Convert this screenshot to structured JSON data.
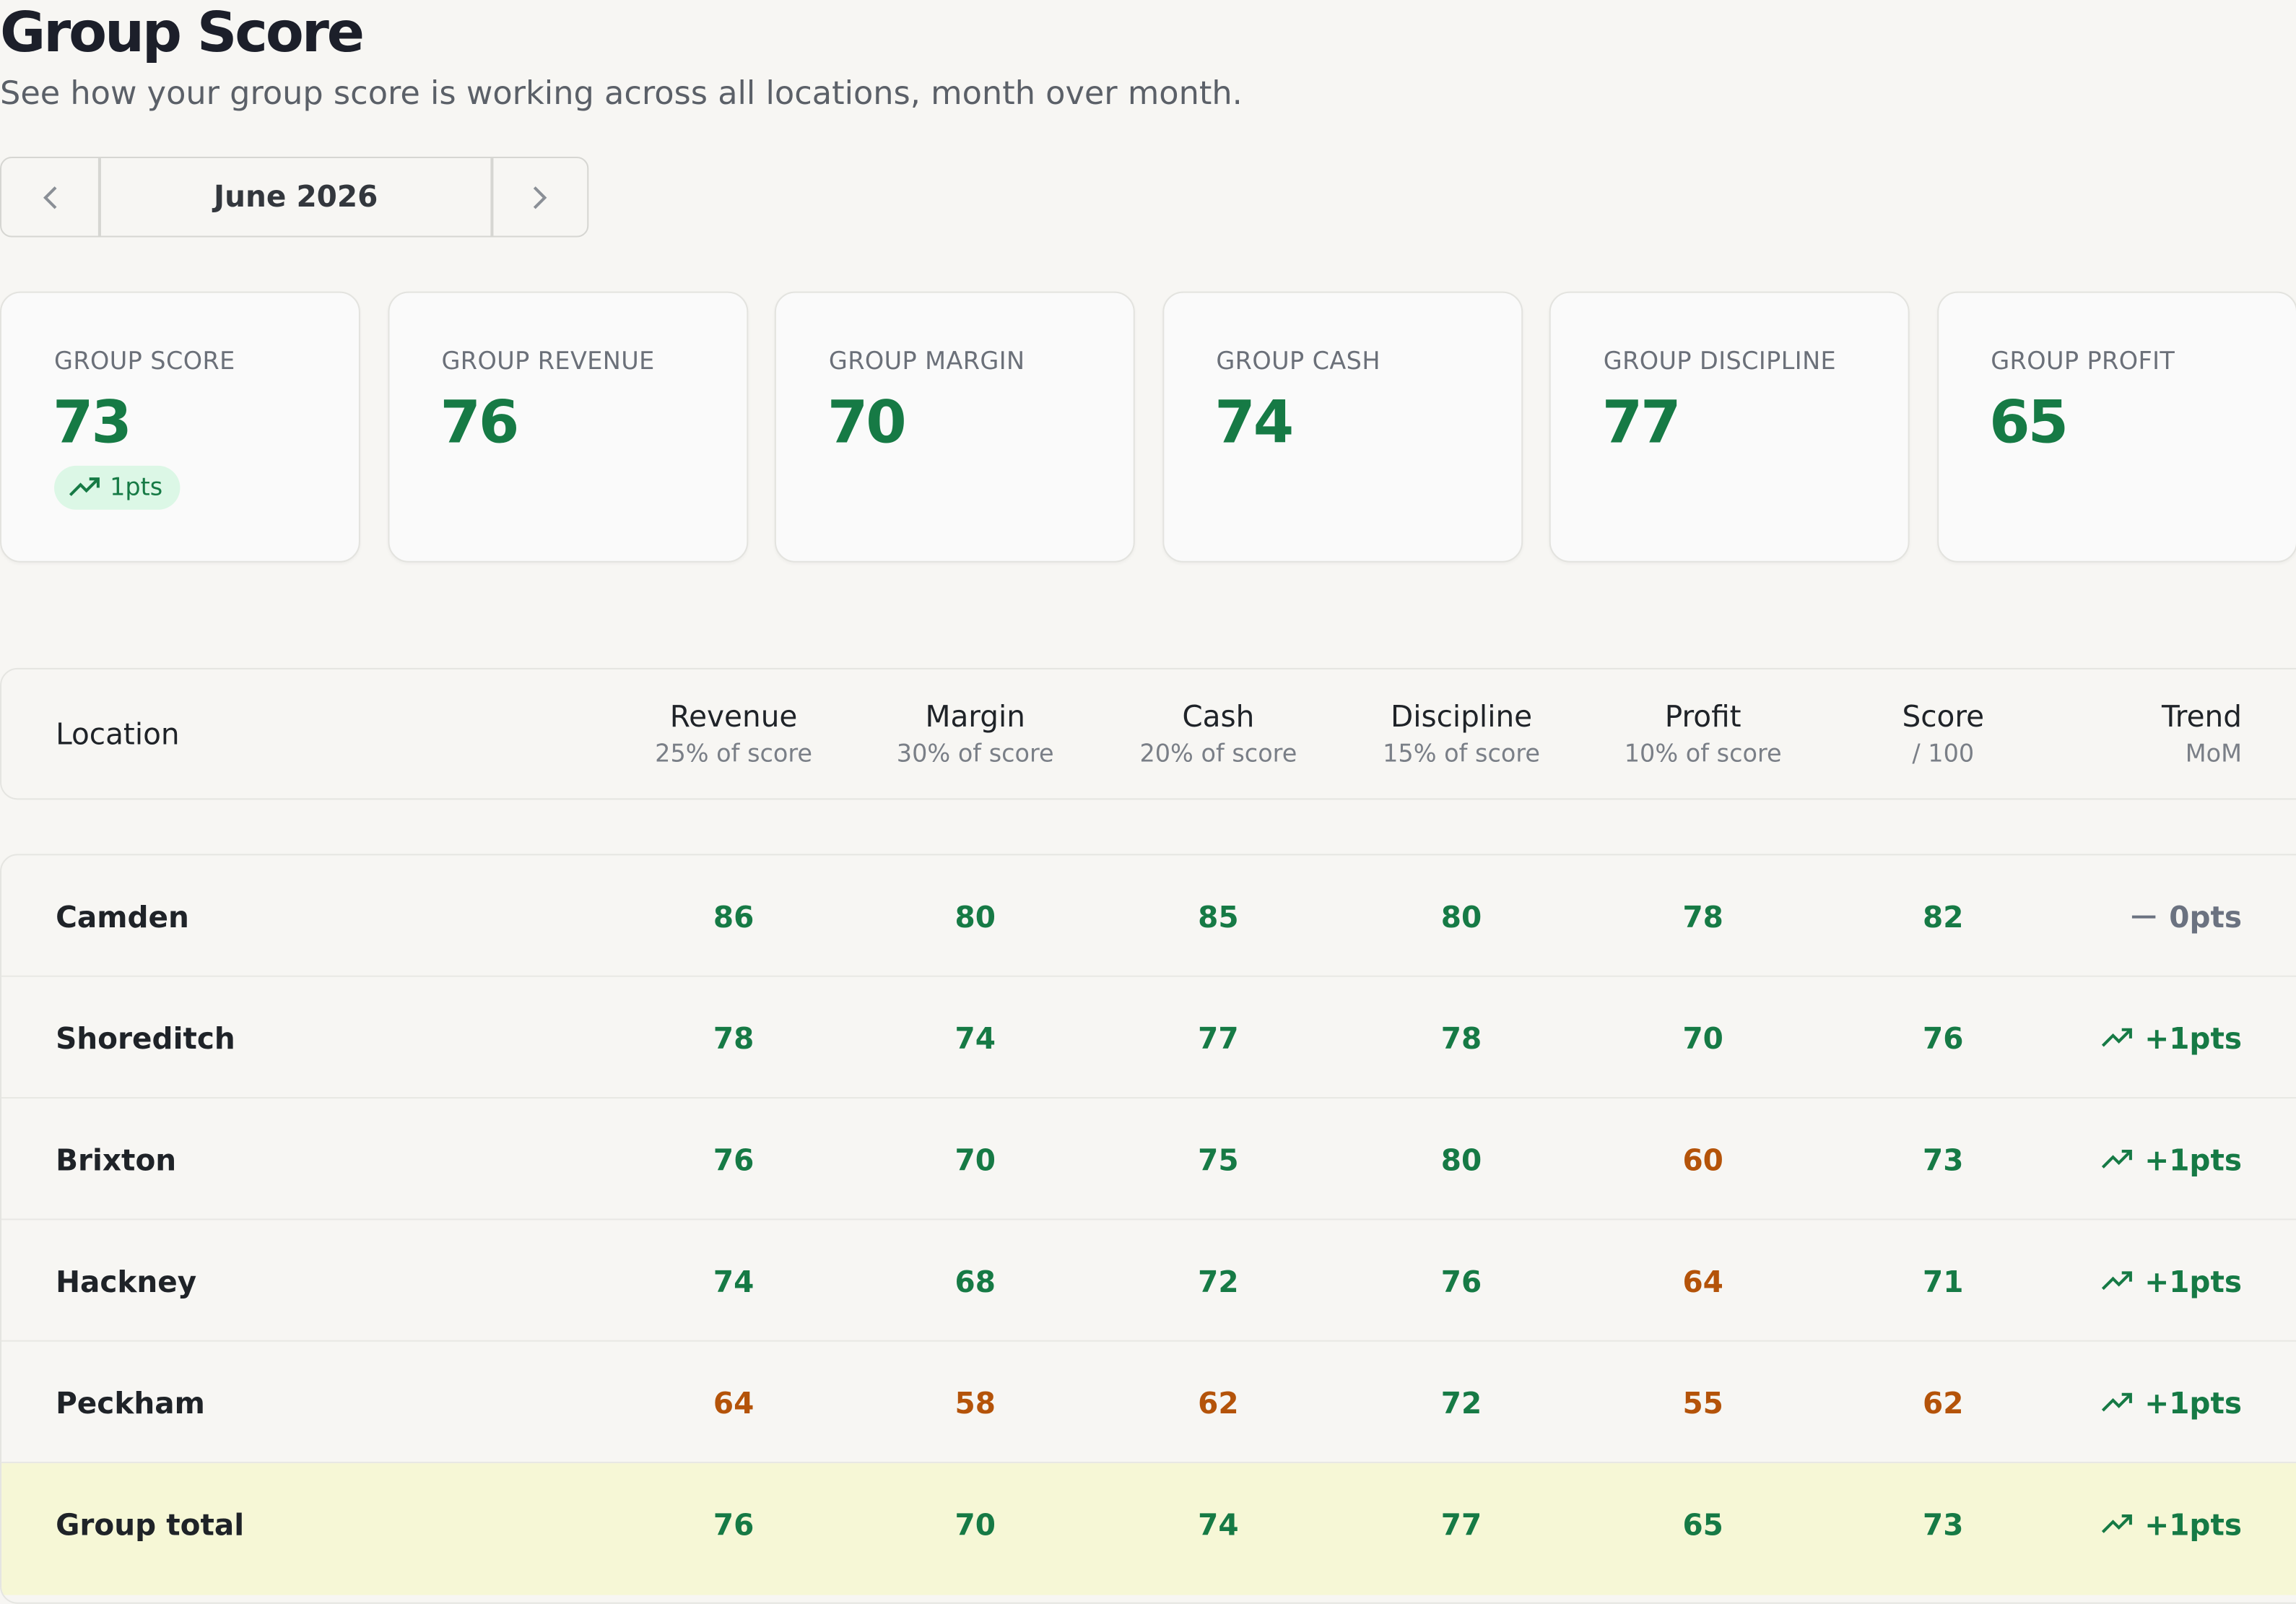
{
  "header": {
    "title": "Group Score",
    "subtitle": "See how your group score is working across all locations, month over month."
  },
  "month_picker": {
    "label": "June 2026"
  },
  "cards": [
    {
      "label": "GROUP SCORE",
      "value": 73,
      "delta": "1pts"
    },
    {
      "label": "GROUP REVENUE",
      "value": 76
    },
    {
      "label": "GROUP MARGIN",
      "value": 70
    },
    {
      "label": "GROUP CASH",
      "value": 74
    },
    {
      "label": "GROUP DISCIPLINE",
      "value": 77
    },
    {
      "label": "GROUP PROFIT",
      "value": 65
    }
  ],
  "table": {
    "location_header": "Location",
    "columns": [
      {
        "title": "Revenue",
        "subtitle": "25% of score"
      },
      {
        "title": "Margin",
        "subtitle": "30% of score"
      },
      {
        "title": "Cash",
        "subtitle": "20% of score"
      },
      {
        "title": "Discipline",
        "subtitle": "15% of score"
      },
      {
        "title": "Profit",
        "subtitle": "10% of score"
      },
      {
        "title": "Score",
        "subtitle": "/ 100"
      },
      {
        "title": "Trend",
        "subtitle": "MoM"
      }
    ],
    "rows": [
      {
        "location": "Camden",
        "values": [
          86,
          80,
          85,
          80,
          78,
          82
        ],
        "colors": [
          "#167a45",
          "#167a45",
          "#167a45",
          "#167a45",
          "#167a45",
          "#167a45"
        ],
        "trend": "0pts",
        "trend_color": "#6b7280"
      },
      {
        "location": "Shoreditch",
        "values": [
          78,
          74,
          77,
          78,
          70,
          76
        ],
        "colors": [
          "#167a45",
          "#167a45",
          "#167a45",
          "#167a45",
          "#167a45",
          "#167a45"
        ],
        "trend": "+1pts",
        "trend_color": "#167a45"
      },
      {
        "location": "Brixton",
        "values": [
          76,
          70,
          75,
          80,
          60,
          73
        ],
        "colors": [
          "#167a45",
          "#167a45",
          "#167a45",
          "#167a45",
          "#b45309",
          "#167a45"
        ],
        "trend": "+1pts",
        "trend_color": "#167a45"
      },
      {
        "location": "Hackney",
        "values": [
          74,
          68,
          72,
          76,
          64,
          71
        ],
        "colors": [
          "#167a45",
          "#167a45",
          "#167a45",
          "#167a45",
          "#b45309",
          "#167a45"
        ],
        "trend": "+1pts",
        "trend_color": "#167a45"
      },
      {
        "location": "Peckham",
        "values": [
          64,
          58,
          62,
          72,
          55,
          62
        ],
        "colors": [
          "#b45309",
          "#b45309",
          "#b45309",
          "#167a45",
          "#b45309",
          "#b45309"
        ],
        "trend": "+1pts",
        "trend_color": "#167a45"
      }
    ],
    "total": {
      "location": "Group total",
      "values": [
        76,
        70,
        74,
        77,
        65,
        73
      ],
      "colors": [
        "#167a45",
        "#167a45",
        "#167a45",
        "#167a45",
        "#167a45",
        "#167a45"
      ],
      "trend": "+1pts",
      "trend_color": "#167a45"
    }
  }
}
